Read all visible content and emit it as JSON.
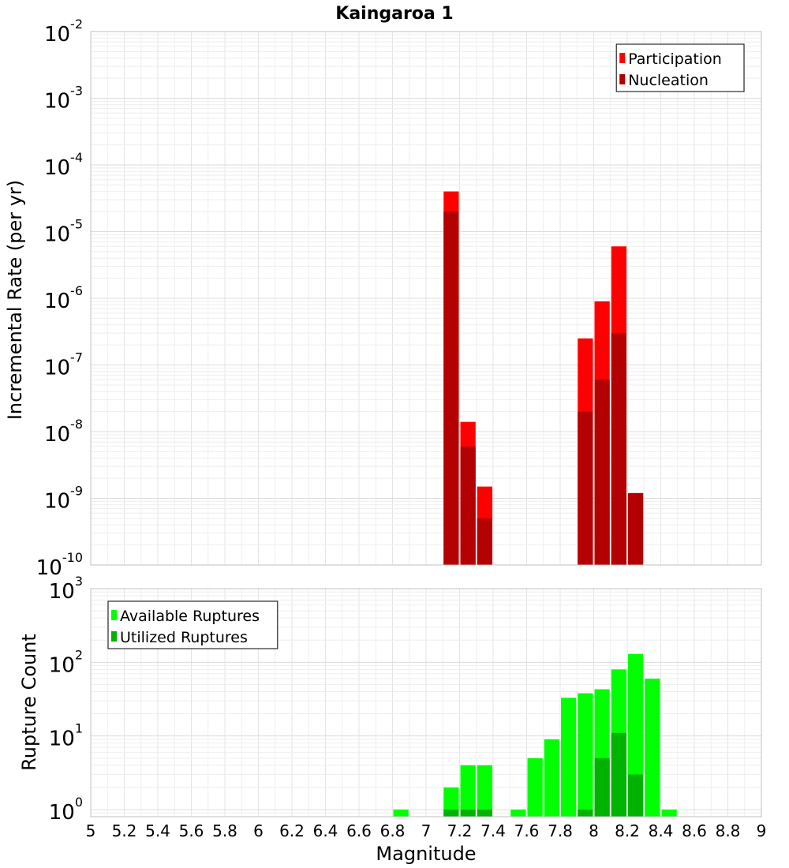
{
  "chart_data": [
    {
      "type": "bar",
      "title": "Kaingaroa 1",
      "ylabel": "Incremental Rate (per yr)",
      "xlabel": "",
      "y_scale": "log",
      "ylim": [
        1e-10,
        0.01
      ],
      "xlim": [
        5,
        9
      ],
      "bin_width": 0.1,
      "legend": "top-right",
      "grid": true,
      "series": [
        {
          "name": "Participation",
          "color": "#ff0000",
          "x": [
            7.15,
            7.25,
            7.35,
            7.95,
            8.05,
            8.15
          ],
          "values": [
            4e-05,
            1.4e-08,
            1.5e-09,
            2.5e-07,
            9e-07,
            6e-06
          ]
        },
        {
          "name": "Nucleation",
          "color": "#b30000",
          "x": [
            7.15,
            7.25,
            7.35,
            7.95,
            8.05,
            8.15,
            8.25
          ],
          "values": [
            2e-05,
            6e-09,
            5e-10,
            2e-08,
            6e-08,
            3e-07,
            1.2e-09
          ]
        }
      ]
    },
    {
      "type": "bar",
      "title": "",
      "ylabel": "Rupture Count",
      "xlabel": "Magnitude",
      "y_scale": "log",
      "ylim": [
        0.8,
        1000
      ],
      "xlim": [
        5,
        9
      ],
      "bin_width": 0.1,
      "legend": "top-left",
      "grid": true,
      "x_ticks": [
        "5",
        "5.2",
        "5.4",
        "5.6",
        "5.8",
        "6",
        "6.2",
        "6.4",
        "6.6",
        "6.8",
        "7",
        "7.2",
        "7.4",
        "7.6",
        "7.8",
        "8",
        "8.2",
        "8.4",
        "8.6",
        "8.8",
        "9"
      ],
      "series": [
        {
          "name": "Available Ruptures",
          "color": "#00ff00",
          "x": [
            6.85,
            7.15,
            7.25,
            7.35,
            7.55,
            7.65,
            7.75,
            7.85,
            7.95,
            8.05,
            8.15,
            8.25,
            8.35,
            8.45
          ],
          "values": [
            1,
            2,
            4,
            4,
            1,
            5,
            9,
            33,
            38,
            43,
            80,
            130,
            60,
            1
          ]
        },
        {
          "name": "Utilized Ruptures",
          "color": "#00b300",
          "x": [
            7.15,
            7.25,
            7.35,
            7.95,
            8.05,
            8.15,
            8.25
          ],
          "values": [
            1,
            1,
            1,
            1,
            5,
            11,
            3
          ]
        }
      ]
    }
  ]
}
